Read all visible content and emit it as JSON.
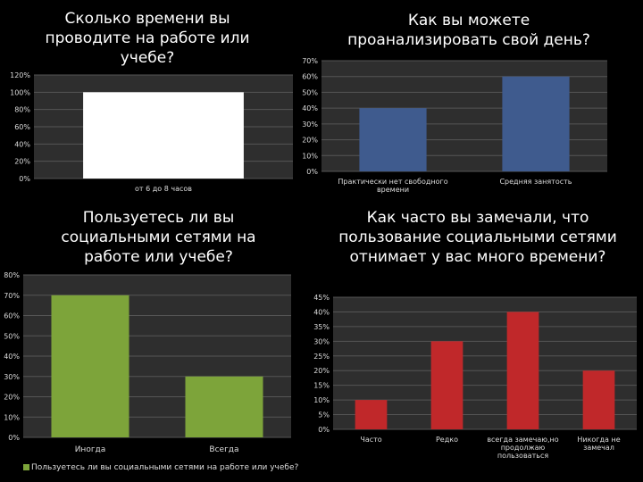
{
  "chart_data": [
    {
      "type": "bar",
      "title": "Сколько времени вы проводите на работе или учебе?",
      "categories": [
        "от 6 до 8 часов"
      ],
      "values": [
        100
      ],
      "unit": "%",
      "ylim": [
        0,
        120
      ],
      "yticks": [
        0,
        20,
        40,
        60,
        80,
        100,
        120
      ],
      "ytick_labels": [
        "0%",
        "20%",
        "40%",
        "60%",
        "80%",
        "100%",
        "120%"
      ],
      "bar_color": "#ffffff",
      "grid": true
    },
    {
      "type": "bar",
      "title": "Как вы можете проанализировать свой день?",
      "categories": [
        "Практически нет свободного времени",
        "Средняя занятость"
      ],
      "values": [
        40,
        60
      ],
      "unit": "%",
      "ylim": [
        0,
        70
      ],
      "yticks": [
        0,
        10,
        20,
        30,
        40,
        50,
        60,
        70
      ],
      "ytick_labels": [
        "0%",
        "10%",
        "20%",
        "30%",
        "40%",
        "50%",
        "60%",
        "70%"
      ],
      "bar_color": "#3f5b8e",
      "grid": true
    },
    {
      "type": "bar",
      "title": "Пользуетесь ли вы социальными сетями на работе или учебе?",
      "categories": [
        "Иногда",
        "Всегда"
      ],
      "values": [
        70,
        30
      ],
      "unit": "%",
      "ylim": [
        0,
        80
      ],
      "yticks": [
        0,
        10,
        20,
        30,
        40,
        50,
        60,
        70,
        80
      ],
      "ytick_labels": [
        "0%",
        "10%",
        "20%",
        "30%",
        "40%",
        "50%",
        "60%",
        "70%",
        "80%"
      ],
      "bar_color": "#7da43a",
      "legend": "Пользуетесь ли вы социальными сетями на работе или учебе?",
      "legend_position": "bottom-left",
      "grid": true
    },
    {
      "type": "bar",
      "title": "Как часто вы замечали, что пользование социальными сетями отнимает у вас много времени?",
      "categories": [
        "Часто",
        "Редко",
        "всегда замечаю,но продолжаю пользоваться",
        "Никогда не замечал"
      ],
      "values": [
        10,
        30,
        40,
        20
      ],
      "unit": "%",
      "ylim": [
        0,
        45
      ],
      "yticks": [
        0,
        5,
        10,
        15,
        20,
        25,
        30,
        35,
        40,
        45
      ],
      "ytick_labels": [
        "0%",
        "5%",
        "10%",
        "15%",
        "20%",
        "25%",
        "30%",
        "35%",
        "40%",
        "45%"
      ],
      "bar_color": "#c0282a",
      "grid": true
    }
  ]
}
